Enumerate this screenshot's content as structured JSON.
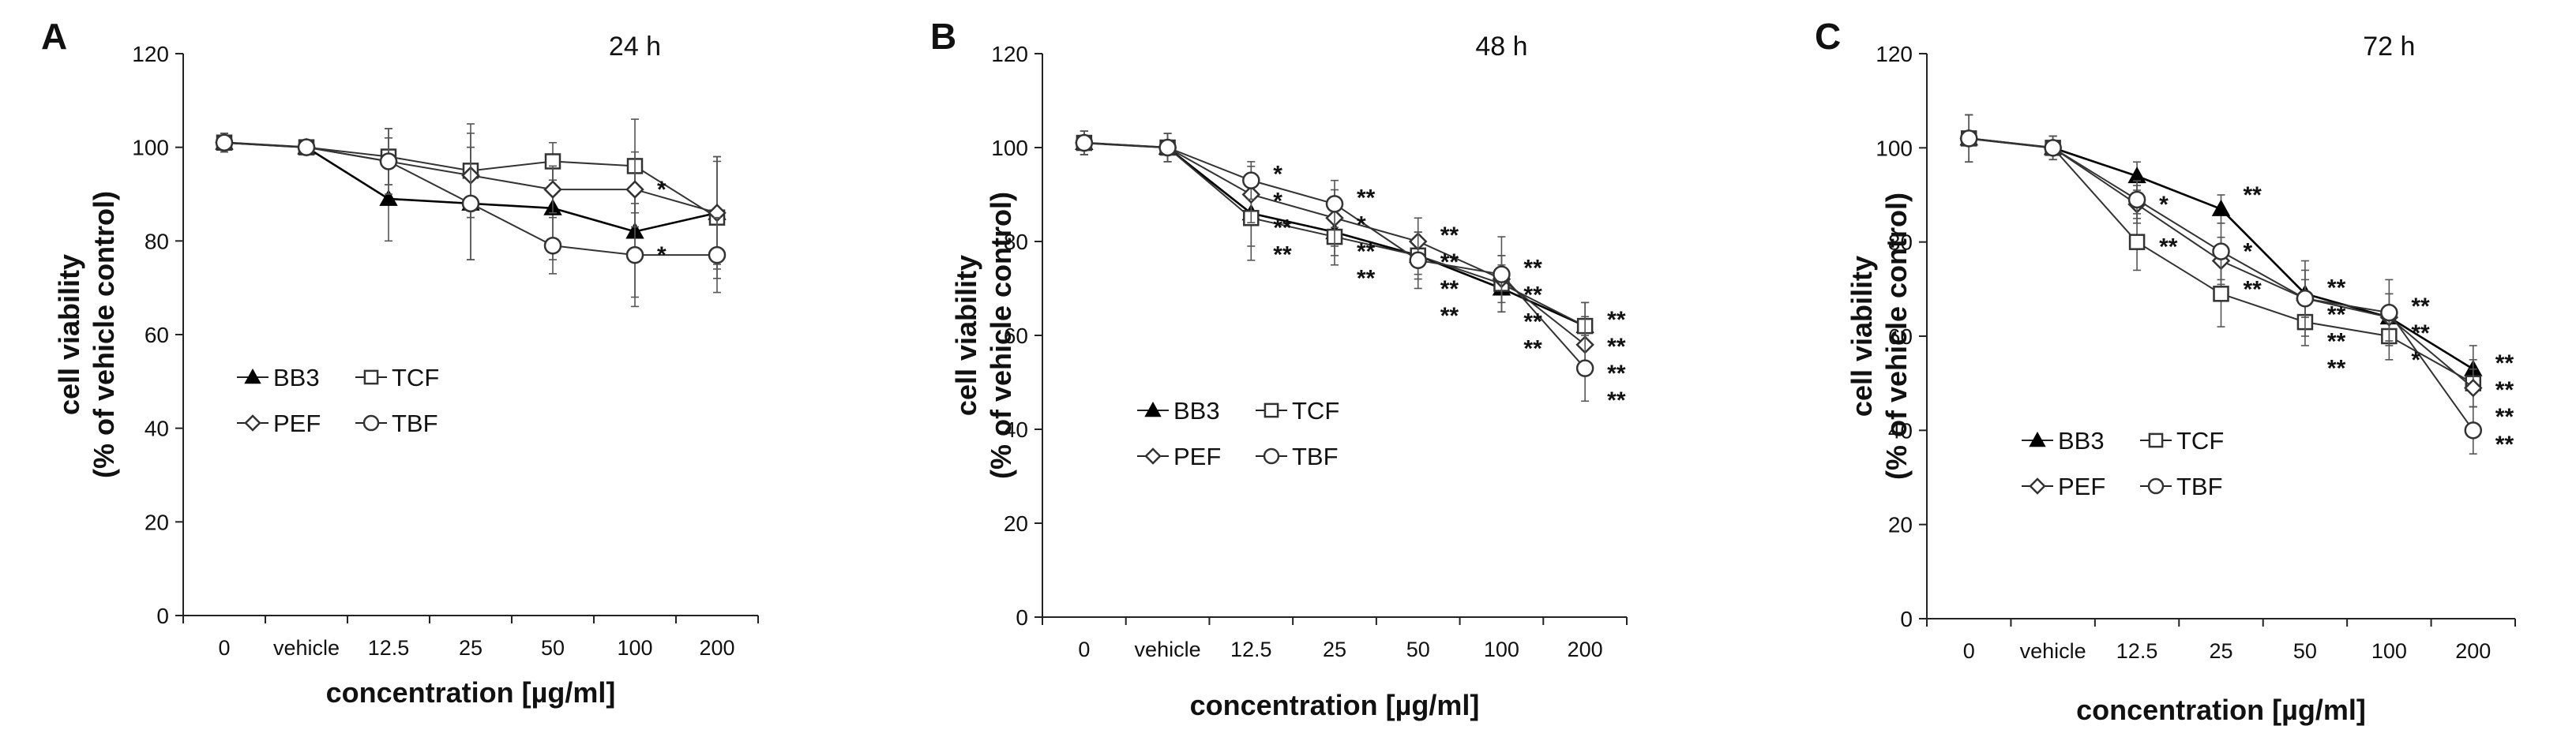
{
  "chart_data": [
    {
      "type": "line",
      "panel": "A",
      "title": "24 h",
      "xlabel": "concentration [µg/ml]",
      "ylabel_line1": "cell viability",
      "ylabel_line2": "(% of vehicle control)",
      "categories": [
        "0",
        "vehicle",
        "12.5",
        "25",
        "50",
        "100",
        "200"
      ],
      "yticks": [
        "0",
        "20",
        "40",
        "60",
        "80",
        "100",
        "120"
      ],
      "ylim": [
        0,
        120
      ],
      "series": [
        {
          "name": "BB3",
          "marker": "triangle",
          "values": [
            101,
            100,
            89,
            88,
            87,
            82,
            86
          ],
          "err": [
            2,
            1.5,
            9,
            12,
            11,
            14,
            12
          ]
        },
        {
          "name": "TCF",
          "marker": "square",
          "values": [
            101,
            100,
            98,
            95,
            97,
            96,
            85
          ],
          "err": [
            2,
            1.5,
            6,
            10,
            4,
            10,
            13
          ]
        },
        {
          "name": "PEF",
          "marker": "diamond",
          "values": [
            101,
            100,
            97,
            94,
            91,
            91,
            86
          ],
          "err": [
            2,
            1.5,
            7,
            9,
            5,
            8,
            11
          ]
        },
        {
          "name": "TBF",
          "marker": "circle",
          "values": [
            101,
            100,
            97,
            88,
            79,
            77,
            77
          ],
          "err": [
            2,
            1.5,
            5,
            12,
            6,
            11,
            8
          ]
        }
      ],
      "significance": [
        {
          "x": "100",
          "y": 91,
          "label": "*"
        },
        {
          "x": "100",
          "y": 77,
          "label": "*"
        }
      ],
      "legend": "lower-left"
    },
    {
      "type": "line",
      "panel": "B",
      "title": "48 h",
      "xlabel": "concentration [µg/ml]",
      "ylabel_line1": "cell viability",
      "ylabel_line2": "(% of vehicle control)",
      "categories": [
        "0",
        "vehicle",
        "12.5",
        "25",
        "50",
        "100",
        "200"
      ],
      "yticks": [
        "0",
        "20",
        "40",
        "60",
        "80",
        "100",
        "120"
      ],
      "ylim": [
        0,
        120
      ],
      "series": [
        {
          "name": "BB3",
          "marker": "triangle",
          "values": [
            101,
            100,
            86,
            82,
            77,
            70,
            62
          ],
          "err": [
            2.5,
            3,
            7,
            5,
            4,
            5,
            5
          ]
        },
        {
          "name": "TCF",
          "marker": "square",
          "values": [
            101,
            100,
            85,
            81,
            77,
            71,
            62
          ],
          "err": [
            2.5,
            3,
            9,
            6,
            5,
            6,
            5
          ]
        },
        {
          "name": "PEF",
          "marker": "diamond",
          "values": [
            101,
            100,
            90,
            85,
            80,
            72,
            58
          ],
          "err": [
            2.5,
            3,
            6,
            6,
            5,
            5,
            6
          ]
        },
        {
          "name": "TBF",
          "marker": "circle",
          "values": [
            101,
            100,
            93,
            88,
            76,
            73,
            53
          ],
          "err": [
            2.5,
            3,
            4,
            5,
            6,
            8,
            7
          ]
        }
      ],
      "significance": [
        {
          "x": "12.5",
          "stack": [
            "*",
            "*",
            "**",
            "**"
          ]
        },
        {
          "x": "25",
          "stack": [
            "**",
            "*",
            "**",
            "**"
          ]
        },
        {
          "x": "50",
          "stack": [
            "**",
            "**",
            "**",
            "**"
          ]
        },
        {
          "x": "100",
          "stack": [
            "**",
            "**",
            "**",
            "**"
          ]
        },
        {
          "x": "200",
          "stack": [
            "**",
            "**",
            "**",
            "**"
          ]
        }
      ],
      "legend": "lower-left"
    },
    {
      "type": "line",
      "panel": "C",
      "title": "72 h",
      "xlabel": "concentration [µg/ml]",
      "ylabel_line1": "cell viability",
      "ylabel_line2": "(% of vehicle control)",
      "categories": [
        "0",
        "vehicle",
        "12.5",
        "25",
        "50",
        "100",
        "200"
      ],
      "yticks": [
        "0",
        "20",
        "40",
        "60",
        "80",
        "100",
        "120"
      ],
      "ylim": [
        0,
        120
      ],
      "series": [
        {
          "name": "BB3",
          "marker": "triangle",
          "values": [
            102,
            100,
            94,
            87,
            69,
            64,
            53
          ],
          "err": [
            5,
            2.5,
            3,
            3,
            5,
            5,
            5
          ]
        },
        {
          "name": "TCF",
          "marker": "square",
          "values": [
            102,
            100,
            80,
            69,
            63,
            60,
            50
          ],
          "err": [
            5,
            2.5,
            6,
            7,
            5,
            5,
            5
          ]
        },
        {
          "name": "PEF",
          "marker": "diamond",
          "values": [
            102,
            100,
            88,
            76,
            68,
            64,
            49
          ],
          "err": [
            5,
            2.5,
            4,
            5,
            4,
            5,
            4
          ]
        },
        {
          "name": "TBF",
          "marker": "circle",
          "values": [
            102,
            100,
            89,
            78,
            68,
            65,
            40
          ],
          "err": [
            5,
            2.5,
            4,
            6,
            8,
            7,
            5
          ]
        }
      ],
      "significance": [
        {
          "x": "12.5",
          "y": 88,
          "label": "*"
        },
        {
          "x": "12.5",
          "y": 79,
          "label": "**"
        },
        {
          "x": "25",
          "y": 90,
          "label": "**"
        },
        {
          "x": "25",
          "y": 78,
          "label": "*"
        },
        {
          "x": "25",
          "y": 70,
          "label": "**"
        },
        {
          "x": "50",
          "stack": [
            "**",
            "**",
            "**",
            "**"
          ]
        },
        {
          "x": "100",
          "stack": [
            "**",
            "**",
            "*"
          ]
        },
        {
          "x": "200",
          "stack": [
            "**",
            "**",
            "**"
          ]
        },
        {
          "x": "200",
          "y": 37,
          "label": "**"
        }
      ],
      "legend": "lower-left"
    }
  ]
}
